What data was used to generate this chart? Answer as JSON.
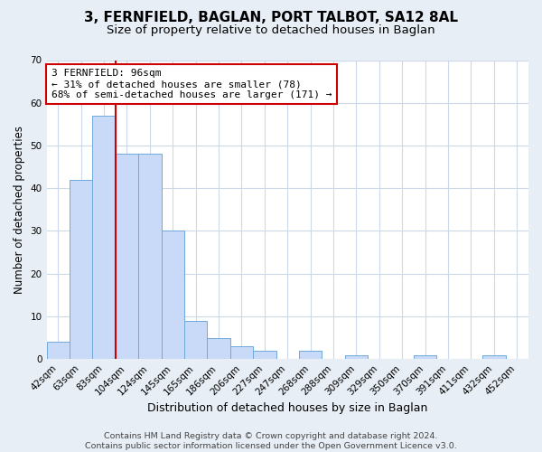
{
  "title": "3, FERNFIELD, BAGLAN, PORT TALBOT, SA12 8AL",
  "subtitle": "Size of property relative to detached houses in Baglan",
  "xlabel": "Distribution of detached houses by size in Baglan",
  "ylabel": "Number of detached properties",
  "bar_labels": [
    "42sqm",
    "63sqm",
    "83sqm",
    "104sqm",
    "124sqm",
    "145sqm",
    "165sqm",
    "186sqm",
    "206sqm",
    "227sqm",
    "247sqm",
    "268sqm",
    "288sqm",
    "309sqm",
    "329sqm",
    "350sqm",
    "370sqm",
    "391sqm",
    "411sqm",
    "432sqm",
    "452sqm"
  ],
  "bar_values": [
    4,
    42,
    57,
    48,
    48,
    30,
    9,
    5,
    3,
    2,
    0,
    2,
    0,
    1,
    0,
    0,
    1,
    0,
    0,
    1,
    0
  ],
  "bar_color": "#c9daf8",
  "bar_edge_color": "#6fa8dc",
  "vline_bar_index": 2,
  "vline_color": "#cc0000",
  "annotation_box_text": "3 FERNFIELD: 96sqm\n← 31% of detached houses are smaller (78)\n68% of semi-detached houses are larger (171) →",
  "annotation_box_edge_color": "#cc0000",
  "annotation_box_face_color": "#ffffff",
  "ylim": [
    0,
    70
  ],
  "yticks": [
    0,
    10,
    20,
    30,
    40,
    50,
    60,
    70
  ],
  "grid_color": "#cdd8e8",
  "bg_color": "#e8eef5",
  "plot_bg_color": "#ffffff",
  "footer_text": "Contains HM Land Registry data © Crown copyright and database right 2024.\nContains public sector information licensed under the Open Government Licence v3.0.",
  "title_fontsize": 11,
  "subtitle_fontsize": 9.5,
  "xlabel_fontsize": 9,
  "ylabel_fontsize": 8.5,
  "tick_fontsize": 7.5,
  "footer_fontsize": 6.8
}
